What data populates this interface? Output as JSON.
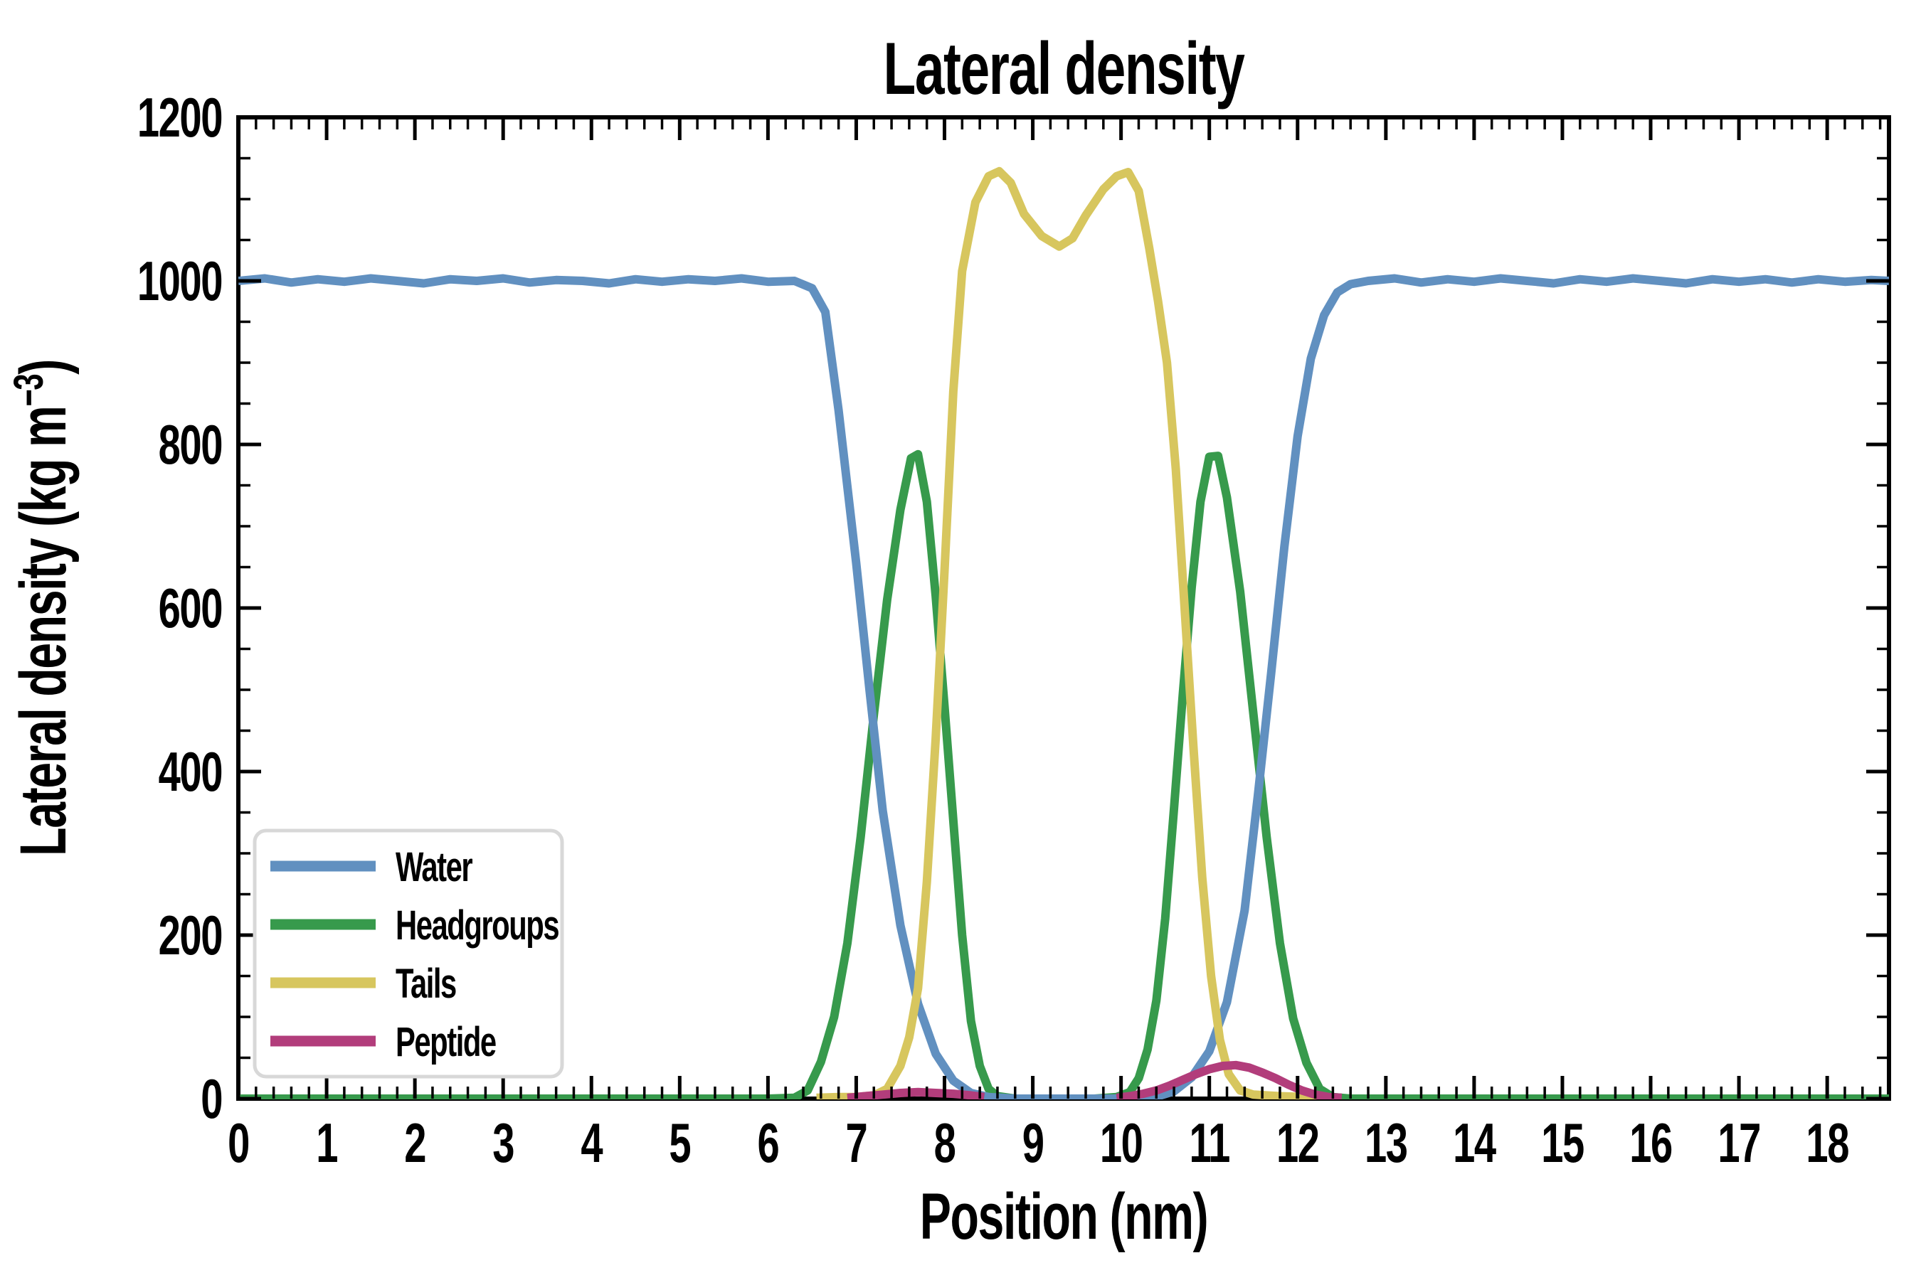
{
  "chart_data": {
    "type": "line",
    "title": "Lateral density",
    "xlabel": "Position (nm)",
    "ylabel": "Lateral density (kg m⁻³)",
    "ylabel_parts": {
      "pre": "Lateral density (kg m",
      "sup": "−3",
      "post": ")"
    },
    "xlim": [
      0,
      18.7
    ],
    "ylim": [
      0,
      1200
    ],
    "xticks_major": [
      0,
      1,
      2,
      3,
      4,
      5,
      6,
      7,
      8,
      9,
      10,
      11,
      12,
      13,
      14,
      15,
      16,
      17,
      18
    ],
    "x_minor_step": 0.2,
    "yticks_major": [
      0,
      200,
      400,
      600,
      800,
      1000,
      1200
    ],
    "y_minor_step": 50,
    "grid": false,
    "background_color": "#ffffff",
    "axis_color": "#000000",
    "legend": {
      "position": "lower left",
      "border_color": "#d8d8d8",
      "fill_color": "#ffffff",
      "items": [
        {
          "label": "Water",
          "series": "water"
        },
        {
          "label": "Headgroups",
          "series": "headgroups"
        },
        {
          "label": "Tails",
          "series": "tails"
        },
        {
          "label": "Peptide",
          "series": "peptide"
        }
      ]
    },
    "series": [
      {
        "name": "headgroups",
        "color": "#379a4c",
        "segments": [
          [
            [
              0,
              0
            ],
            [
              1,
              0
            ],
            [
              2,
              0
            ],
            [
              3,
              0
            ],
            [
              4,
              0
            ],
            [
              5,
              0
            ],
            [
              5.6,
              0
            ],
            [
              6,
              0
            ],
            [
              6.3,
              1
            ],
            [
              6.45,
              10
            ],
            [
              6.6,
              45
            ],
            [
              6.75,
              100
            ],
            [
              6.9,
              190
            ],
            [
              7.05,
              320
            ],
            [
              7.2,
              470
            ],
            [
              7.35,
              610
            ],
            [
              7.5,
              720
            ],
            [
              7.62,
              783
            ],
            [
              7.7,
              788
            ],
            [
              7.8,
              730
            ],
            [
              7.9,
              615
            ],
            [
              8,
              480
            ],
            [
              8.1,
              340
            ],
            [
              8.2,
              200
            ],
            [
              8.3,
              95
            ],
            [
              8.4,
              40
            ],
            [
              8.5,
              12
            ],
            [
              8.6,
              3
            ],
            [
              8.8,
              0
            ],
            [
              9.3,
              0
            ],
            [
              9.7,
              0
            ],
            [
              9.95,
              2
            ],
            [
              10.1,
              8
            ],
            [
              10.2,
              25
            ],
            [
              10.3,
              60
            ],
            [
              10.4,
              120
            ],
            [
              10.5,
              220
            ],
            [
              10.6,
              355
            ],
            [
              10.7,
              495
            ],
            [
              10.8,
              625
            ],
            [
              10.9,
              730
            ],
            [
              11,
              785
            ],
            [
              11.1,
              786
            ],
            [
              11.2,
              735
            ],
            [
              11.35,
              620
            ],
            [
              11.5,
              470
            ],
            [
              11.65,
              320
            ],
            [
              11.8,
              190
            ],
            [
              11.95,
              98
            ],
            [
              12.1,
              44
            ],
            [
              12.25,
              12
            ],
            [
              12.4,
              2
            ],
            [
              12.6,
              0
            ],
            [
              13,
              0
            ],
            [
              14,
              0
            ],
            [
              15,
              0
            ],
            [
              16,
              0
            ],
            [
              17,
              0
            ],
            [
              18,
              0
            ],
            [
              18.7,
              0
            ]
          ]
        ]
      },
      {
        "name": "water",
        "color": "#6190c0",
        "segments": [
          [
            [
              0,
              1000
            ],
            [
              0.3,
              1003
            ],
            [
              0.6,
              998
            ],
            [
              0.9,
              1002
            ],
            [
              1.2,
              999
            ],
            [
              1.5,
              1003
            ],
            [
              1.8,
              1000
            ],
            [
              2.1,
              997
            ],
            [
              2.4,
              1002
            ],
            [
              2.7,
              1000
            ],
            [
              3,
              1003
            ],
            [
              3.3,
              998
            ],
            [
              3.6,
              1001
            ],
            [
              3.9,
              1000
            ],
            [
              4.2,
              997
            ],
            [
              4.5,
              1002
            ],
            [
              4.8,
              999
            ],
            [
              5.1,
              1002
            ],
            [
              5.4,
              1000
            ],
            [
              5.7,
              1003
            ],
            [
              6,
              999
            ],
            [
              6.3,
              1000
            ],
            [
              6.5,
              991
            ],
            [
              6.65,
              962
            ],
            [
              6.8,
              842
            ],
            [
              7,
              655
            ],
            [
              7.15,
              500
            ],
            [
              7.3,
              352
            ],
            [
              7.5,
              212
            ],
            [
              7.7,
              116
            ],
            [
              7.9,
              55
            ],
            [
              8.1,
              22
            ],
            [
              8.3,
              7
            ],
            [
              8.5,
              2
            ],
            [
              8.8,
              0
            ],
            [
              9.3,
              0
            ],
            [
              9.9,
              0
            ],
            [
              10.2,
              1
            ],
            [
              10.45,
              4
            ],
            [
              10.6,
              9
            ],
            [
              10.8,
              26
            ],
            [
              11,
              58
            ],
            [
              11.2,
              118
            ],
            [
              11.4,
              230
            ],
            [
              11.55,
              370
            ],
            [
              11.7,
              520
            ],
            [
              11.85,
              675
            ],
            [
              12,
              810
            ],
            [
              12.15,
              905
            ],
            [
              12.3,
              958
            ],
            [
              12.45,
              986
            ],
            [
              12.6,
              996
            ],
            [
              12.8,
              1000
            ],
            [
              13.1,
              1003
            ],
            [
              13.4,
              998
            ],
            [
              13.7,
              1002
            ],
            [
              14,
              999
            ],
            [
              14.3,
              1003
            ],
            [
              14.6,
              1000
            ],
            [
              14.9,
              997
            ],
            [
              15.2,
              1002
            ],
            [
              15.5,
              999
            ],
            [
              15.8,
              1003
            ],
            [
              16.1,
              1000
            ],
            [
              16.4,
              997
            ],
            [
              16.7,
              1002
            ],
            [
              17,
              999
            ],
            [
              17.3,
              1002
            ],
            [
              17.6,
              998
            ],
            [
              17.9,
              1002
            ],
            [
              18.2,
              999
            ],
            [
              18.5,
              1001
            ],
            [
              18.7,
              1000
            ]
          ]
        ]
      },
      {
        "name": "tails",
        "color": "#d7c65e",
        "segments": [
          [
            [
              6.55,
              1
            ],
            [
              6.8,
              2
            ],
            [
              7,
              2
            ],
            [
              7.2,
              4
            ],
            [
              7.35,
              12
            ],
            [
              7.5,
              40
            ],
            [
              7.6,
              75
            ],
            [
              7.7,
              135
            ],
            [
              7.8,
              265
            ],
            [
              7.9,
              440
            ],
            [
              8,
              645
            ],
            [
              8.1,
              865
            ],
            [
              8.2,
              1012
            ],
            [
              8.35,
              1096
            ],
            [
              8.5,
              1128
            ],
            [
              8.62,
              1134
            ],
            [
              8.75,
              1120
            ],
            [
              8.9,
              1082
            ],
            [
              9.1,
              1055
            ],
            [
              9.3,
              1042
            ],
            [
              9.45,
              1052
            ],
            [
              9.6,
              1080
            ],
            [
              9.8,
              1112
            ],
            [
              9.95,
              1128
            ],
            [
              10.08,
              1133
            ],
            [
              10.2,
              1110
            ],
            [
              10.32,
              1040
            ],
            [
              10.42,
              975
            ],
            [
              10.52,
              900
            ],
            [
              10.62,
              770
            ],
            [
              10.72,
              600
            ],
            [
              10.82,
              430
            ],
            [
              10.92,
              270
            ],
            [
              11.02,
              150
            ],
            [
              11.12,
              72
            ],
            [
              11.22,
              30
            ],
            [
              11.35,
              10
            ],
            [
              11.5,
              5
            ],
            [
              11.8,
              3
            ],
            [
              12.1,
              2
            ],
            [
              12.35,
              1
            ]
          ]
        ]
      },
      {
        "name": "peptide",
        "color": "#b23d7b",
        "segments": [
          [
            [
              6.9,
              1
            ],
            [
              7.1,
              3
            ],
            [
              7.3,
              5
            ],
            [
              7.5,
              7
            ],
            [
              7.7,
              8
            ],
            [
              7.9,
              7
            ],
            [
              8.1,
              6
            ],
            [
              8.3,
              4
            ],
            [
              8.45,
              2
            ]
          ],
          [
            [
              9.95,
              1
            ],
            [
              10.1,
              3
            ],
            [
              10.25,
              6
            ],
            [
              10.4,
              10
            ],
            [
              10.55,
              16
            ],
            [
              10.7,
              23
            ],
            [
              10.85,
              30
            ],
            [
              11,
              36
            ],
            [
              11.15,
              40
            ],
            [
              11.3,
              41
            ],
            [
              11.45,
              38
            ],
            [
              11.6,
              32
            ],
            [
              11.75,
              25
            ],
            [
              11.9,
              17
            ],
            [
              12.05,
              10
            ],
            [
              12.2,
              5
            ],
            [
              12.35,
              2
            ],
            [
              12.5,
              1
            ]
          ]
        ]
      }
    ]
  }
}
